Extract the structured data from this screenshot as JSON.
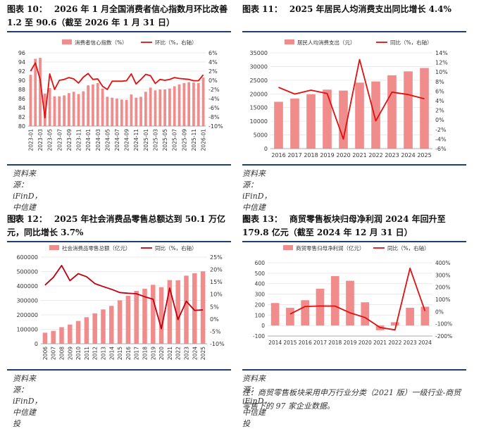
{
  "panels": [
    {
      "fig_label": "图表 10：",
      "title": "2026 年 1 月全国消费者信心指数月环比改善 1.2 至 90.6（截至 2026 年 1 月 31 日）",
      "source": "资料来源：iFinD，中信建投"
    },
    {
      "fig_label": "图表 11：",
      "title": "2025 年居民人均消费支出同比增长 4.4%",
      "source": "资料来源：iFinD，中信建投"
    },
    {
      "fig_label": "图表 12：",
      "title": "2025 年社会消费品零售总额达到 50.1 万亿元，同比增长 3.7%",
      "source": "资料来源：iFinD，中信建投"
    },
    {
      "fig_label": "图表 13：",
      "title": "商贸零售板块归母净利润 2024 年回升至 179.8 亿元（截至 2024 年 12 月 31 日）",
      "source": "资料来源：iFinD，中信建投",
      "note": "注：商贸零售板块采用申万行业分类（2021 版）一级行业-商贸零售下的 97 家企业数据。"
    }
  ],
  "chart_data": [
    {
      "type": "bar",
      "bar_color": "#f08c8c",
      "line_color": "#e01010",
      "categories": [
        "2023-01",
        "2023-02",
        "2023-03",
        "2023-04",
        "2023-05",
        "2023-06",
        "2023-07",
        "2023-08",
        "2023-09",
        "2023-10",
        "2023-11",
        "2023-12",
        "2024-01",
        "2024-02",
        "2024-03",
        "2024-04",
        "2024-05",
        "2024-06",
        "2024-07",
        "2024-08",
        "2024-09",
        "2024-10",
        "2024-11",
        "2024-12",
        "2025-01",
        "2025-02",
        "2025-03",
        "2025-04",
        "2025-05",
        "2025-06",
        "2025-07",
        "2025-08",
        "2025-09",
        "2025-10",
        "2025-11",
        "2025-12",
        "2026-01"
      ],
      "tick_labels": [
        "2023-01",
        "2023-03",
        "2023-05",
        "2023-07",
        "2023-09",
        "2023-11",
        "2024-01",
        "2024-03",
        "2024-05",
        "2024-07",
        "2024-09",
        "2024-11",
        "2025-01",
        "2025-03",
        "2025-05",
        "2025-07",
        "2025-09",
        "2025-11",
        "2026-01"
      ],
      "series": [
        {
          "name": "消费者信心指数（%）",
          "axis": "left",
          "type": "bar",
          "values": [
            91.2,
            94.7,
            94.9,
            87.1,
            88.3,
            86.5,
            86.5,
            86.7,
            87.2,
            87.5,
            87.0,
            87.6,
            88.9,
            89.1,
            89.4,
            88.2,
            86.4,
            86.2,
            86.0,
            85.8,
            85.7,
            86.9,
            86.2,
            86.4,
            87.5,
            88.4,
            87.8,
            88.0,
            88.0,
            88.2,
            88.7,
            89.1,
            89.4,
            89.6,
            89.5,
            89.4,
            90.6
          ]
        },
        {
          "name": "环比（%，右轴）",
          "axis": "right",
          "type": "line",
          "values": [
            2.0,
            3.8,
            0.2,
            -8.2,
            1.4,
            -2.0,
            0.0,
            0.2,
            0.6,
            0.3,
            -0.6,
            0.7,
            1.5,
            0.2,
            0.3,
            -1.3,
            -2.0,
            -0.2,
            -0.2,
            -0.2,
            -0.1,
            1.4,
            -0.8,
            0.2,
            1.3,
            1.0,
            -0.7,
            0.2,
            0.0,
            0.2,
            0.6,
            0.4,
            0.3,
            0.2,
            -0.1,
            -0.1,
            1.2
          ]
        }
      ],
      "ylim_left": [
        80,
        96
      ],
      "yticks_left": [
        80,
        82,
        84,
        86,
        88,
        90,
        92,
        94,
        96
      ],
      "ylim_right": [
        -10,
        6
      ],
      "yticks_right": [
        "-10%",
        "-8%",
        "-6%",
        "-4%",
        "-2%",
        "0%",
        "2%",
        "4%",
        "6%"
      ],
      "legend": "top"
    },
    {
      "type": "bar",
      "bar_color": "#f08c8c",
      "line_color": "#e01010",
      "categories": [
        "2016",
        "2017",
        "2018",
        "2019",
        "2020",
        "2021",
        "2022",
        "2023",
        "2024",
        "2025"
      ],
      "series": [
        {
          "name": "居民人均消费支出（元）",
          "axis": "left",
          "type": "bar",
          "values": [
            17111,
            18322,
            19853,
            21559,
            21210,
            24100,
            24538,
            26796,
            28227,
            29460
          ]
        },
        {
          "name": "同比（%，右轴）",
          "axis": "right",
          "type": "line",
          "values": [
            6.8,
            5.4,
            6.2,
            5.5,
            -4.0,
            12.6,
            -0.2,
            5.8,
            5.3,
            4.4
          ]
        }
      ],
      "ylim_left": [
        0,
        35000
      ],
      "yticks_left": [
        0,
        5000,
        10000,
        15000,
        20000,
        25000,
        30000,
        35000
      ],
      "ylim_right": [
        -6,
        14
      ],
      "yticks_right": [
        "-6%",
        "-4%",
        "-2%",
        "0%",
        "2%",
        "4%",
        "6%",
        "8%",
        "10%",
        "12%",
        "14%"
      ],
      "legend": "top"
    },
    {
      "type": "bar",
      "bar_color": "#f08c8c",
      "line_color": "#c00010",
      "categories": [
        "2006",
        "2007",
        "2008",
        "2009",
        "2010",
        "2011",
        "2012",
        "2013",
        "2014",
        "2015",
        "2016",
        "2017",
        "2018",
        "2019",
        "2020",
        "2021",
        "2022",
        "2023",
        "2024",
        "2025"
      ],
      "series": [
        {
          "name": "社会消费品零售总额（亿元）",
          "axis": "left",
          "type": "bar",
          "values": [
            76410,
            89210,
            114830,
            133048,
            158008,
            183919,
            210307,
            237810,
            262394,
            300931,
            332316,
            366262,
            380987,
            408017,
            391981,
            440823,
            439733,
            471495,
            487895,
            501202
          ]
        },
        {
          "name": "同比（%，右轴）",
          "axis": "right",
          "type": "line",
          "values": [
            13.7,
            16.8,
            21.6,
            15.5,
            18.3,
            17.1,
            14.3,
            13.1,
            12.0,
            10.7,
            10.4,
            10.2,
            9.0,
            8.0,
            -3.9,
            12.5,
            -0.2,
            7.2,
            3.5,
            3.7
          ]
        }
      ],
      "ylim_left": [
        0,
        600000
      ],
      "yticks_left": [
        0,
        100000,
        200000,
        300000,
        400000,
        500000,
        600000
      ],
      "ylim_right": [
        -10,
        25
      ],
      "yticks_right": [
        "-10%",
        "-5%",
        "0%",
        "5%",
        "10%",
        "15%",
        "20%",
        "25%"
      ],
      "legend": "top"
    },
    {
      "type": "bar",
      "bar_color": "#f08c8c",
      "line_color": "#e01010",
      "categories": [
        "2014",
        "2015",
        "2016",
        "2017",
        "2018",
        "2019",
        "2020",
        "2021",
        "2022",
        "2023",
        "2024"
      ],
      "series": [
        {
          "name": "商贸零售归母净利润（亿元）",
          "axis": "left",
          "type": "bar",
          "values": [
            215,
            170,
            242,
            352,
            472,
            428,
            222,
            -45,
            32,
            170,
            179.8
          ]
        },
        {
          "name": "同比（%，右轴）",
          "axis": "right",
          "type": "line",
          "values": [
            null,
            -20,
            42,
            46,
            45,
            -10,
            -48,
            -130,
            -150,
            355,
            5
          ]
        }
      ],
      "ylim_left": [
        -100,
        600
      ],
      "yticks_left": [
        -100,
        0,
        100,
        200,
        300,
        400,
        500,
        600
      ],
      "ylim_right": [
        -200,
        400
      ],
      "yticks_right": [
        "-200%",
        "-100%",
        "0%",
        "100%",
        "200%",
        "300%",
        "400%"
      ],
      "legend": "top"
    }
  ]
}
